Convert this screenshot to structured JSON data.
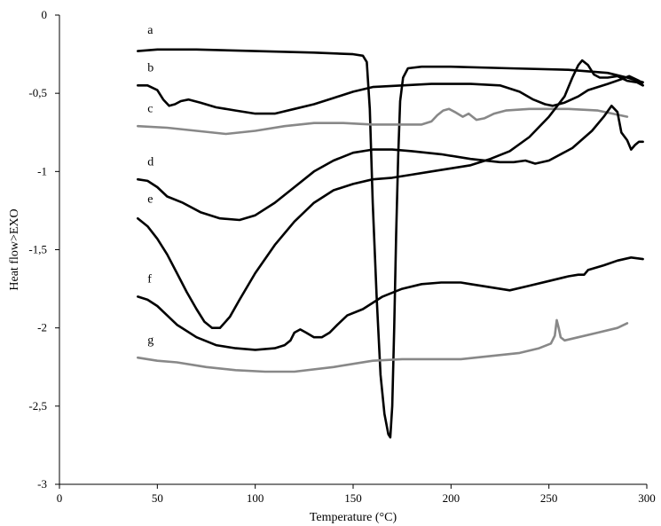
{
  "chart_data": {
    "type": "line",
    "title": "",
    "xlabel": "Temperature (°C)",
    "ylabel": "Heat flow>EXO",
    "xlim": [
      0,
      300
    ],
    "ylim": [
      -3,
      0
    ],
    "x_ticks": [
      {
        "value": 0,
        "label": "0"
      },
      {
        "value": 50,
        "label": "50"
      },
      {
        "value": 100,
        "label": "100"
      },
      {
        "value": 150,
        "label": "150"
      },
      {
        "value": 200,
        "label": "200"
      },
      {
        "value": 250,
        "label": "250"
      },
      {
        "value": 300,
        "label": "300"
      }
    ],
    "y_ticks": [
      {
        "value": 0,
        "label": "0"
      },
      {
        "value": -0.5,
        "label": "-0,5"
      },
      {
        "value": -1,
        "label": "-1"
      },
      {
        "value": -1.5,
        "label": "-1,5"
      },
      {
        "value": -2,
        "label": "-2"
      },
      {
        "value": -2.5,
        "label": "-2,5"
      },
      {
        "value": -3,
        "label": "-3"
      }
    ],
    "grid": false,
    "legend": "none",
    "series": [
      {
        "name": "a",
        "color": "#000000",
        "points": [
          [
            40,
            -0.23
          ],
          [
            50,
            -0.22
          ],
          [
            70,
            -0.22
          ],
          [
            100,
            -0.23
          ],
          [
            130,
            -0.24
          ],
          [
            150,
            -0.25
          ],
          [
            155,
            -0.26
          ],
          [
            157,
            -0.3
          ],
          [
            158.5,
            -0.6
          ],
          [
            160,
            -1.2
          ],
          [
            162,
            -1.8
          ],
          [
            164,
            -2.3
          ],
          [
            166,
            -2.55
          ],
          [
            168,
            -2.68
          ],
          [
            169,
            -2.7
          ],
          [
            170,
            -2.5
          ],
          [
            171,
            -2.0
          ],
          [
            172,
            -1.4
          ],
          [
            173,
            -0.9
          ],
          [
            174,
            -0.55
          ],
          [
            175.5,
            -0.4
          ],
          [
            178,
            -0.34
          ],
          [
            185,
            -0.33
          ],
          [
            200,
            -0.33
          ],
          [
            230,
            -0.34
          ],
          [
            260,
            -0.35
          ],
          [
            280,
            -0.37
          ],
          [
            290,
            -0.4
          ],
          [
            298,
            -0.43
          ]
        ]
      },
      {
        "name": "b",
        "color": "#000000",
        "points": [
          [
            40,
            -0.45
          ],
          [
            45,
            -0.45
          ],
          [
            50,
            -0.48
          ],
          [
            53,
            -0.54
          ],
          [
            56,
            -0.58
          ],
          [
            59,
            -0.57
          ],
          [
            62,
            -0.55
          ],
          [
            66,
            -0.54
          ],
          [
            72,
            -0.56
          ],
          [
            80,
            -0.59
          ],
          [
            90,
            -0.61
          ],
          [
            100,
            -0.63
          ],
          [
            110,
            -0.63
          ],
          [
            120,
            -0.6
          ],
          [
            130,
            -0.57
          ],
          [
            140,
            -0.53
          ],
          [
            150,
            -0.49
          ],
          [
            160,
            -0.46
          ],
          [
            175,
            -0.45
          ],
          [
            190,
            -0.44
          ],
          [
            210,
            -0.44
          ],
          [
            225,
            -0.45
          ],
          [
            235,
            -0.49
          ],
          [
            242,
            -0.54
          ],
          [
            248,
            -0.57
          ],
          [
            252,
            -0.58
          ],
          [
            258,
            -0.56
          ],
          [
            265,
            -0.52
          ],
          [
            270,
            -0.48
          ],
          [
            280,
            -0.44
          ],
          [
            287,
            -0.41
          ],
          [
            291,
            -0.39
          ],
          [
            296,
            -0.42
          ],
          [
            298,
            -0.45
          ]
        ]
      },
      {
        "name": "c",
        "color": "#888888",
        "points": [
          [
            40,
            -0.71
          ],
          [
            55,
            -0.72
          ],
          [
            70,
            -0.74
          ],
          [
            85,
            -0.76
          ],
          [
            100,
            -0.74
          ],
          [
            115,
            -0.71
          ],
          [
            130,
            -0.69
          ],
          [
            145,
            -0.69
          ],
          [
            160,
            -0.7
          ],
          [
            175,
            -0.7
          ],
          [
            185,
            -0.7
          ],
          [
            190,
            -0.68
          ],
          [
            193,
            -0.64
          ],
          [
            196,
            -0.61
          ],
          [
            199,
            -0.6
          ],
          [
            202,
            -0.62
          ],
          [
            206,
            -0.65
          ],
          [
            209,
            -0.63
          ],
          [
            213,
            -0.67
          ],
          [
            217,
            -0.66
          ],
          [
            222,
            -0.63
          ],
          [
            228,
            -0.61
          ],
          [
            240,
            -0.6
          ],
          [
            260,
            -0.6
          ],
          [
            275,
            -0.61
          ],
          [
            290,
            -0.65
          ]
        ]
      },
      {
        "name": "d",
        "color": "#000000",
        "points": [
          [
            40,
            -1.05
          ],
          [
            45,
            -1.06
          ],
          [
            50,
            -1.1
          ],
          [
            55,
            -1.16
          ],
          [
            63,
            -1.2
          ],
          [
            72,
            -1.26
          ],
          [
            82,
            -1.3
          ],
          [
            92,
            -1.31
          ],
          [
            100,
            -1.28
          ],
          [
            110,
            -1.2
          ],
          [
            120,
            -1.1
          ],
          [
            130,
            -1.0
          ],
          [
            140,
            -0.93
          ],
          [
            150,
            -0.88
          ],
          [
            160,
            -0.86
          ],
          [
            170,
            -0.86
          ],
          [
            180,
            -0.87
          ],
          [
            195,
            -0.89
          ],
          [
            210,
            -0.92
          ],
          [
            225,
            -0.94
          ],
          [
            232,
            -0.94
          ],
          [
            238,
            -0.93
          ],
          [
            243,
            -0.95
          ],
          [
            250,
            -0.93
          ],
          [
            262,
            -0.85
          ],
          [
            272,
            -0.74
          ],
          [
            278,
            -0.65
          ],
          [
            282,
            -0.58
          ],
          [
            285,
            -0.62
          ],
          [
            287,
            -0.75
          ],
          [
            290,
            -0.8
          ],
          [
            292,
            -0.86
          ],
          [
            294,
            -0.83
          ],
          [
            296,
            -0.81
          ],
          [
            298,
            -0.81
          ]
        ]
      },
      {
        "name": "e",
        "color": "#000000",
        "points": [
          [
            40,
            -1.3
          ],
          [
            45,
            -1.35
          ],
          [
            50,
            -1.43
          ],
          [
            55,
            -1.53
          ],
          [
            60,
            -1.65
          ],
          [
            65,
            -1.77
          ],
          [
            70,
            -1.88
          ],
          [
            74,
            -1.96
          ],
          [
            78,
            -2.0
          ],
          [
            82,
            -2.0
          ],
          [
            87,
            -1.93
          ],
          [
            92,
            -1.82
          ],
          [
            100,
            -1.65
          ],
          [
            110,
            -1.47
          ],
          [
            120,
            -1.32
          ],
          [
            130,
            -1.2
          ],
          [
            140,
            -1.12
          ],
          [
            150,
            -1.08
          ],
          [
            160,
            -1.05
          ],
          [
            170,
            -1.04
          ],
          [
            180,
            -1.02
          ],
          [
            190,
            -1.0
          ],
          [
            200,
            -0.98
          ],
          [
            210,
            -0.96
          ],
          [
            220,
            -0.92
          ],
          [
            230,
            -0.87
          ],
          [
            240,
            -0.78
          ],
          [
            250,
            -0.65
          ],
          [
            258,
            -0.52
          ],
          [
            262,
            -0.4
          ],
          [
            265,
            -0.32
          ],
          [
            267,
            -0.29
          ],
          [
            270,
            -0.32
          ],
          [
            273,
            -0.38
          ],
          [
            276,
            -0.4
          ],
          [
            280,
            -0.4
          ],
          [
            285,
            -0.39
          ],
          [
            290,
            -0.42
          ],
          [
            295,
            -0.43
          ],
          [
            298,
            -0.45
          ]
        ]
      },
      {
        "name": "f",
        "color": "#000000",
        "points": [
          [
            40,
            -1.8
          ],
          [
            45,
            -1.82
          ],
          [
            50,
            -1.86
          ],
          [
            55,
            -1.92
          ],
          [
            60,
            -1.98
          ],
          [
            70,
            -2.06
          ],
          [
            80,
            -2.11
          ],
          [
            90,
            -2.13
          ],
          [
            100,
            -2.14
          ],
          [
            110,
            -2.13
          ],
          [
            115,
            -2.11
          ],
          [
            118,
            -2.08
          ],
          [
            120,
            -2.03
          ],
          [
            123,
            -2.01
          ],
          [
            126,
            -2.03
          ],
          [
            130,
            -2.06
          ],
          [
            134,
            -2.06
          ],
          [
            138,
            -2.03
          ],
          [
            142,
            -1.98
          ],
          [
            147,
            -1.92
          ],
          [
            155,
            -1.88
          ],
          [
            165,
            -1.8
          ],
          [
            175,
            -1.75
          ],
          [
            185,
            -1.72
          ],
          [
            195,
            -1.71
          ],
          [
            205,
            -1.71
          ],
          [
            210,
            -1.72
          ],
          [
            220,
            -1.74
          ],
          [
            230,
            -1.76
          ],
          [
            240,
            -1.73
          ],
          [
            250,
            -1.7
          ],
          [
            260,
            -1.67
          ],
          [
            265,
            -1.66
          ],
          [
            268,
            -1.66
          ],
          [
            270,
            -1.63
          ],
          [
            278,
            -1.6
          ],
          [
            285,
            -1.57
          ],
          [
            292,
            -1.55
          ],
          [
            298,
            -1.56
          ]
        ]
      },
      {
        "name": "g",
        "color": "#888888",
        "points": [
          [
            40,
            -2.19
          ],
          [
            50,
            -2.21
          ],
          [
            60,
            -2.22
          ],
          [
            75,
            -2.25
          ],
          [
            90,
            -2.27
          ],
          [
            105,
            -2.28
          ],
          [
            120,
            -2.28
          ],
          [
            140,
            -2.25
          ],
          [
            160,
            -2.21
          ],
          [
            175,
            -2.2
          ],
          [
            190,
            -2.2
          ],
          [
            205,
            -2.2
          ],
          [
            220,
            -2.18
          ],
          [
            235,
            -2.16
          ],
          [
            245,
            -2.13
          ],
          [
            251,
            -2.1
          ],
          [
            253,
            -2.05
          ],
          [
            254,
            -1.95
          ],
          [
            255,
            -2.0
          ],
          [
            256,
            -2.06
          ],
          [
            258,
            -2.08
          ],
          [
            265,
            -2.06
          ],
          [
            275,
            -2.03
          ],
          [
            285,
            -2.0
          ],
          [
            290,
            -1.97
          ]
        ]
      }
    ],
    "series_labels": [
      {
        "name": "a",
        "x": 45,
        "y": -0.12
      },
      {
        "name": "b",
        "x": 45,
        "y": -0.36
      },
      {
        "name": "c",
        "x": 45,
        "y": -0.62
      },
      {
        "name": "d",
        "x": 45,
        "y": -0.96
      },
      {
        "name": "e",
        "x": 45,
        "y": -1.2
      },
      {
        "name": "f",
        "x": 45,
        "y": -1.71
      },
      {
        "name": "g",
        "x": 45,
        "y": -2.1
      }
    ]
  }
}
